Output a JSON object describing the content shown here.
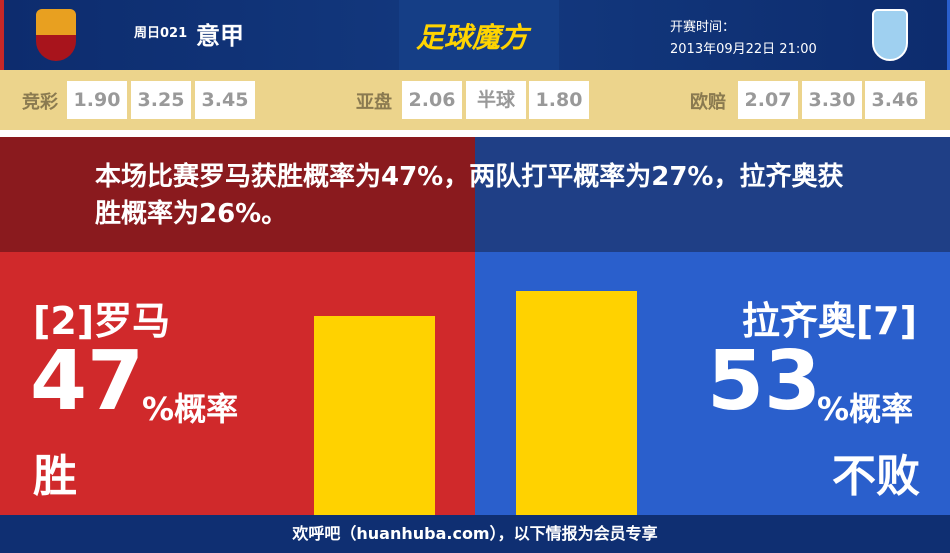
{
  "header": {
    "match_no": "周日021",
    "league": "意甲",
    "logo_text": "足球魔方",
    "time_label": "开赛时间：",
    "time_value": "2013年09月22日 21:00",
    "home_crest": "roma-crest-icon",
    "away_crest": "lazio-crest-icon"
  },
  "odds": {
    "jingcai": {
      "label": "竞彩",
      "values": [
        "1.90",
        "3.25",
        "3.45"
      ]
    },
    "yapan": {
      "label": "亚盘",
      "values": [
        "2.06",
        "半球",
        "1.80"
      ]
    },
    "oupei": {
      "label": "欧赔",
      "values": [
        "2.07",
        "3.30",
        "3.46"
      ]
    }
  },
  "message": "本场比赛罗马获胜概率为47%，两队打平概率为27%，拉齐奥获胜概率为26%。",
  "home": {
    "name": "[2]罗马",
    "percent": "47",
    "percent_suffix": "%概率",
    "outcome": "胜",
    "bar_value": 47,
    "color": "#d0292b"
  },
  "away": {
    "name": "拉齐奥[7]",
    "percent": "53",
    "percent_suffix": "%概率",
    "outcome": "不败",
    "bar_value": 53,
    "color": "#2a5fcc"
  },
  "footer": "欢呼吧（huanhuba.com），以下情报为会员专享"
}
